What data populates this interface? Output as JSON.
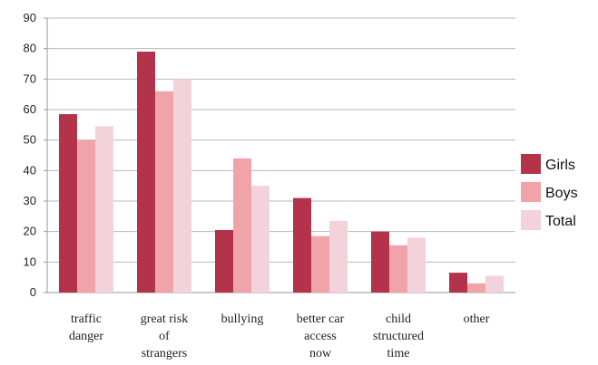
{
  "chart_data": {
    "type": "bar",
    "title": "",
    "xlabel": "",
    "ylabel": "",
    "ylim": [
      0,
      90
    ],
    "yticks": [
      0,
      10,
      20,
      30,
      40,
      50,
      60,
      70,
      80,
      90
    ],
    "grid": true,
    "legend_position": "right",
    "categories": [
      [
        "traffic",
        "danger"
      ],
      [
        "great risk",
        "of",
        "strangers"
      ],
      [
        "bullying"
      ],
      [
        "better car",
        "access",
        "now"
      ],
      [
        "child",
        "structured",
        "time"
      ],
      [
        "other"
      ]
    ],
    "series": [
      {
        "name": "Girls",
        "color": "#b2334a",
        "values": [
          58.5,
          79,
          20.5,
          31,
          20,
          6.5
        ]
      },
      {
        "name": "Boys",
        "color": "#f0a3a8",
        "values": [
          50,
          66,
          44,
          18.5,
          15.5,
          3
        ]
      },
      {
        "name": "Total",
        "color": "#f3d2db",
        "values": [
          54.5,
          70,
          35,
          23.5,
          18,
          5.5
        ]
      }
    ]
  }
}
